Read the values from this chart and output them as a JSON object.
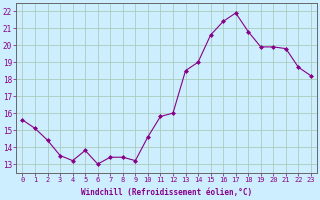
{
  "x": [
    0,
    1,
    2,
    3,
    4,
    5,
    6,
    7,
    8,
    9,
    10,
    11,
    12,
    13,
    14,
    15,
    16,
    17,
    18,
    19,
    20,
    21,
    22,
    23
  ],
  "y": [
    15.6,
    15.1,
    14.4,
    13.5,
    13.2,
    13.8,
    13.0,
    13.4,
    13.4,
    13.2,
    14.6,
    15.8,
    16.0,
    18.5,
    19.0,
    20.6,
    21.4,
    21.9,
    20.8,
    19.9,
    19.9,
    19.8,
    18.7,
    18.2
  ],
  "line_color": "#880088",
  "marker": "D",
  "marker_size": 2,
  "bg_color": "#cceeff",
  "grid_color": "#aaccbb",
  "xlabel": "Windchill (Refroidissement éolien,°C)",
  "ylabel_ticks": [
    13,
    14,
    15,
    16,
    17,
    18,
    19,
    20,
    21,
    22
  ],
  "xlim": [
    -0.5,
    23.5
  ],
  "ylim": [
    12.5,
    22.5
  ],
  "tick_color": "#880088",
  "label_color": "#880088",
  "spine_color": "#666666"
}
